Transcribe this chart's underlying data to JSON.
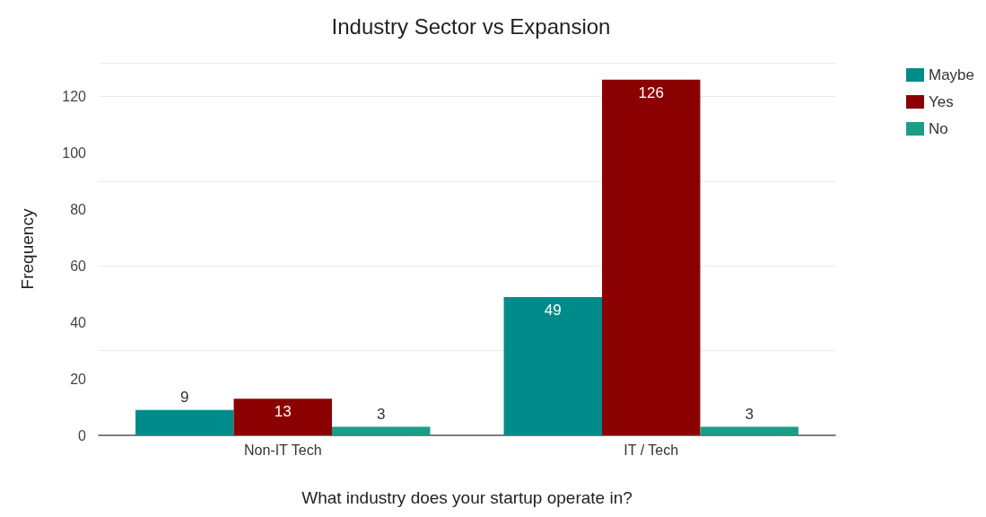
{
  "chart_data": {
    "type": "bar",
    "title": "Industry Sector vs Expansion",
    "xlabel": "What industry does your startup operate in?",
    "ylabel": "Frequency",
    "categories": [
      "Non-IT Tech",
      "IT / Tech"
    ],
    "series": [
      {
        "name": "Maybe",
        "color": "#008b8b",
        "values": [
          9,
          49
        ]
      },
      {
        "name": "Yes",
        "color": "#8b0000",
        "values": [
          13,
          126
        ]
      },
      {
        "name": "No",
        "color": "#1b9e85",
        "values": [
          3,
          3
        ]
      }
    ],
    "ylim": [
      0,
      132
    ],
    "yticks": [
      0,
      20,
      40,
      60,
      80,
      100,
      120
    ],
    "grid": "y",
    "legend": "top right",
    "data_labels": true
  }
}
